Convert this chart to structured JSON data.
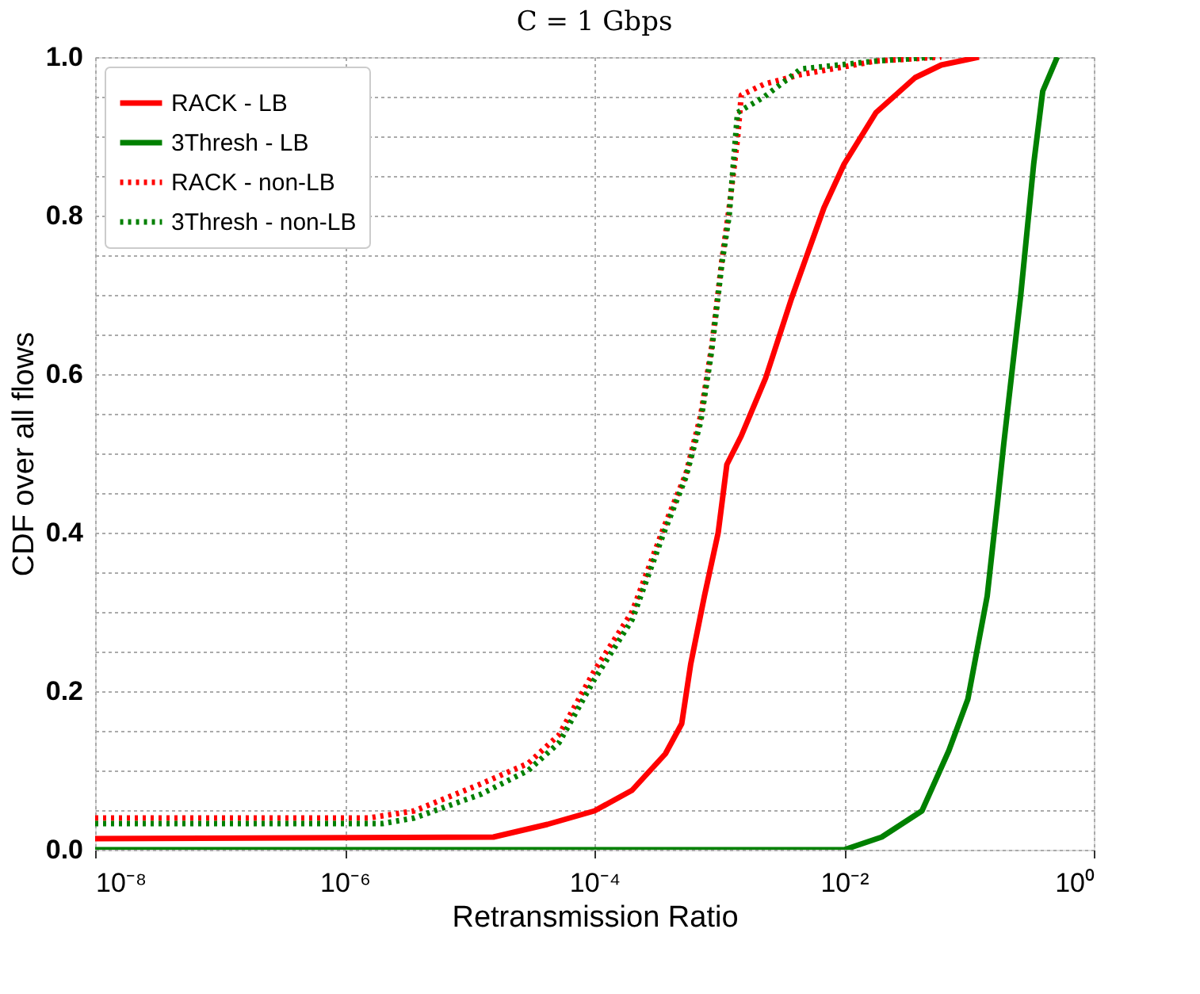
{
  "chart_data": {
    "type": "line",
    "title": "C = 1 Gbps",
    "xlabel": "Retransmission Ratio",
    "ylabel": "CDF over all flows",
    "log": "x",
    "xlim": [
      1e-08,
      1
    ],
    "ylim": [
      0,
      1
    ],
    "xticks": [
      {
        "value": 1e-08,
        "label": "10⁻⁸"
      },
      {
        "value": 1e-06,
        "label": "10⁻⁶"
      },
      {
        "value": 0.0001,
        "label": "10⁻⁴"
      },
      {
        "value": 0.01,
        "label": "10⁻²"
      },
      {
        "value": 1,
        "label": "10⁰"
      }
    ],
    "yticks": [
      {
        "value": 0,
        "label": "0.0"
      },
      {
        "value": 0.05,
        "label": null
      },
      {
        "value": 0.1,
        "label": null
      },
      {
        "value": 0.15,
        "label": null
      },
      {
        "value": 0.2,
        "label": "0.2"
      },
      {
        "value": 0.25,
        "label": null
      },
      {
        "value": 0.3,
        "label": null
      },
      {
        "value": 0.35,
        "label": null
      },
      {
        "value": 0.4,
        "label": "0.4"
      },
      {
        "value": 0.45,
        "label": null
      },
      {
        "value": 0.5,
        "label": null
      },
      {
        "value": 0.55,
        "label": null
      },
      {
        "value": 0.6,
        "label": "0.6"
      },
      {
        "value": 0.65,
        "label": null
      },
      {
        "value": 0.7,
        "label": null
      },
      {
        "value": 0.75,
        "label": null
      },
      {
        "value": 0.8,
        "label": "0.8"
      },
      {
        "value": 0.85,
        "label": null
      },
      {
        "value": 0.9,
        "label": null
      },
      {
        "value": 0.95,
        "label": null
      },
      {
        "value": 1,
        "label": "1.0"
      }
    ],
    "grid": true,
    "legend": "top left",
    "series": [
      {
        "name": "RACK - LB",
        "color": "#ff0000",
        "line_style": "solid",
        "x": [
          1e-08,
          1.55e-05,
          4.2e-05,
          0.0001,
          0.0002,
          0.00037,
          0.0005,
          0.00059,
          0.00076,
          0.00098,
          0.00115,
          0.0015,
          0.00235,
          0.0038,
          0.0069,
          0.01,
          0.018,
          0.037,
          0.06,
          0.12
        ],
        "values": [
          0.014,
          0.016,
          0.032,
          0.049,
          0.075,
          0.121,
          0.159,
          0.234,
          0.32,
          0.4,
          0.486,
          0.522,
          0.595,
          0.696,
          0.81,
          0.865,
          0.93,
          0.974,
          0.99,
          1.0
        ]
      },
      {
        "name": "3Thresh - LB",
        "color": "#008000",
        "line_style": "solid",
        "x": [
          1e-08,
          0.01,
          0.02,
          0.042,
          0.069,
          0.098,
          0.14,
          0.17,
          0.19,
          0.26,
          0.33,
          0.39,
          0.51
        ],
        "values": [
          0.0,
          0.0,
          0.016,
          0.049,
          0.125,
          0.19,
          0.32,
          0.44,
          0.512,
          0.7,
          0.865,
          0.957,
          1.0
        ]
      },
      {
        "name": "RACK - non-LB",
        "color": "#ff0000",
        "line_style": "dotted",
        "x": [
          1e-08,
          1.55e-06,
          3.6e-06,
          1.23e-05,
          2.95e-05,
          5.2e-05,
          0.0001,
          0.0002,
          0.00036,
          0.00054,
          0.00071,
          0.00087,
          0.00105,
          0.0012,
          0.0014,
          0.0015,
          0.0023,
          0.0045,
          0.018,
          0.06
        ],
        "values": [
          0.04,
          0.04,
          0.049,
          0.083,
          0.109,
          0.145,
          0.226,
          0.3,
          0.407,
          0.474,
          0.548,
          0.635,
          0.744,
          0.81,
          0.897,
          0.952,
          0.966,
          0.978,
          0.995,
          1.0
        ]
      },
      {
        "name": "3Thresh - non-LB",
        "color": "#008000",
        "line_style": "dotted",
        "x": [
          1e-08,
          2e-06,
          3.6e-06,
          1.23e-05,
          2.95e-05,
          5.2e-05,
          0.0001,
          0.0002,
          0.00036,
          0.00054,
          0.00071,
          0.00087,
          0.00105,
          0.0012,
          0.0014,
          0.0023,
          0.0045,
          0.018,
          0.052
        ],
        "values": [
          0.033,
          0.033,
          0.04,
          0.07,
          0.1,
          0.135,
          0.215,
          0.29,
          0.4,
          0.47,
          0.54,
          0.63,
          0.74,
          0.8,
          0.93,
          0.95,
          0.985,
          0.995,
          1.0
        ]
      }
    ]
  }
}
